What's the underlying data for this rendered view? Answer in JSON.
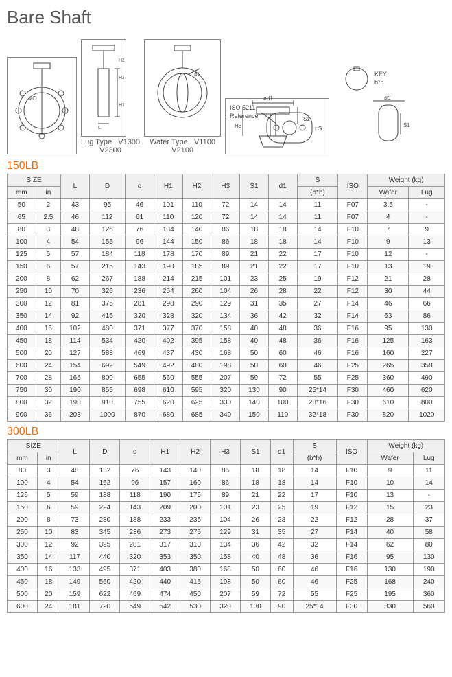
{
  "page_title": "Bare Shaft",
  "diagrams": {
    "lug": {
      "caption1": "Lug Type",
      "caption2": "V1300\nV2300",
      "labels": [
        "øD",
        "H1",
        "H2",
        "H3",
        "L"
      ]
    },
    "wafer": {
      "caption1": "Wafer Type",
      "caption2": "V1100\nV2100",
      "labels": [
        "ød"
      ]
    },
    "top": {
      "label": "ISO 5211\nReference",
      "labels2": [
        "□S"
      ]
    },
    "stem": {
      "labels": [
        "ød1",
        "H3",
        "S1"
      ]
    },
    "key": {
      "labels": [
        "ød",
        "KEY\nb*h",
        "S1"
      ]
    }
  },
  "section1": {
    "title": "150LB",
    "headers": {
      "size": "SIZE",
      "mm": "mm",
      "in": "in",
      "L": "L",
      "D": "D",
      "d": "d",
      "H1": "H1",
      "H2": "H2",
      "H3": "H3",
      "S1": "S1",
      "d1": "d1",
      "S": "S",
      "bh": "(b*h)",
      "ISO": "ISO",
      "Weight": "Weight (kg)",
      "Wafer": "Wafer",
      "Lug": "Lug"
    },
    "rows": [
      [
        "50",
        "2",
        "43",
        "95",
        "46",
        "101",
        "110",
        "72",
        "14",
        "14",
        "11",
        "F07",
        "3.5",
        "-"
      ],
      [
        "65",
        "2.5",
        "46",
        "112",
        "61",
        "110",
        "120",
        "72",
        "14",
        "14",
        "11",
        "F07",
        "4",
        "-"
      ],
      [
        "80",
        "3",
        "48",
        "126",
        "76",
        "134",
        "140",
        "86",
        "18",
        "18",
        "14",
        "F10",
        "7",
        "9"
      ],
      [
        "100",
        "4",
        "54",
        "155",
        "96",
        "144",
        "150",
        "86",
        "18",
        "18",
        "14",
        "F10",
        "9",
        "13"
      ],
      [
        "125",
        "5",
        "57",
        "184",
        "118",
        "178",
        "170",
        "89",
        "21",
        "22",
        "17",
        "F10",
        "12",
        "-"
      ],
      [
        "150",
        "6",
        "57",
        "215",
        "143",
        "190",
        "185",
        "89",
        "21",
        "22",
        "17",
        "F10",
        "13",
        "19"
      ],
      [
        "200",
        "8",
        "62",
        "267",
        "188",
        "214",
        "215",
        "101",
        "23",
        "25",
        "19",
        "F12",
        "21",
        "28"
      ],
      [
        "250",
        "10",
        "70",
        "326",
        "236",
        "254",
        "260",
        "104",
        "26",
        "28",
        "22",
        "F12",
        "30",
        "44"
      ],
      [
        "300",
        "12",
        "81",
        "375",
        "281",
        "298",
        "290",
        "129",
        "31",
        "35",
        "27",
        "F14",
        "46",
        "66"
      ],
      [
        "350",
        "14",
        "92",
        "416",
        "320",
        "328",
        "320",
        "134",
        "36",
        "42",
        "32",
        "F14",
        "63",
        "86"
      ],
      [
        "400",
        "16",
        "102",
        "480",
        "371",
        "377",
        "370",
        "158",
        "40",
        "48",
        "36",
        "F16",
        "95",
        "130"
      ],
      [
        "450",
        "18",
        "114",
        "534",
        "420",
        "402",
        "395",
        "158",
        "40",
        "48",
        "36",
        "F16",
        "125",
        "163"
      ],
      [
        "500",
        "20",
        "127",
        "588",
        "469",
        "437",
        "430",
        "168",
        "50",
        "60",
        "46",
        "F16",
        "160",
        "227"
      ],
      [
        "600",
        "24",
        "154",
        "692",
        "549",
        "492",
        "480",
        "198",
        "50",
        "60",
        "46",
        "F25",
        "265",
        "358"
      ],
      [
        "700",
        "28",
        "165",
        "800",
        "655",
        "560",
        "555",
        "207",
        "59",
        "72",
        "55",
        "F25",
        "360",
        "490"
      ],
      [
        "750",
        "30",
        "190",
        "855",
        "698",
        "610",
        "595",
        "320",
        "130",
        "90",
        "25*14",
        "F30",
        "460",
        "620"
      ],
      [
        "800",
        "32",
        "190",
        "910",
        "755",
        "620",
        "625",
        "330",
        "140",
        "100",
        "28*16",
        "F30",
        "610",
        "800"
      ],
      [
        "900",
        "36",
        "203",
        "1000",
        "870",
        "680",
        "685",
        "340",
        "150",
        "110",
        "32*18",
        "F30",
        "820",
        "1020"
      ]
    ]
  },
  "section2": {
    "title": "300LB",
    "rows": [
      [
        "80",
        "3",
        "48",
        "132",
        "76",
        "143",
        "140",
        "86",
        "18",
        "18",
        "14",
        "F10",
        "9",
        "11"
      ],
      [
        "100",
        "4",
        "54",
        "162",
        "96",
        "157",
        "160",
        "86",
        "18",
        "18",
        "14",
        "F10",
        "10",
        "14"
      ],
      [
        "125",
        "5",
        "59",
        "188",
        "118",
        "190",
        "175",
        "89",
        "21",
        "22",
        "17",
        "F10",
        "13",
        "-"
      ],
      [
        "150",
        "6",
        "59",
        "224",
        "143",
        "209",
        "200",
        "101",
        "23",
        "25",
        "19",
        "F12",
        "15",
        "23"
      ],
      [
        "200",
        "8",
        "73",
        "280",
        "188",
        "233",
        "235",
        "104",
        "26",
        "28",
        "22",
        "F12",
        "28",
        "37"
      ],
      [
        "250",
        "10",
        "83",
        "345",
        "236",
        "273",
        "275",
        "129",
        "31",
        "35",
        "27",
        "F14",
        "40",
        "58"
      ],
      [
        "300",
        "12",
        "92",
        "395",
        "281",
        "317",
        "310",
        "134",
        "36",
        "42",
        "32",
        "F14",
        "62",
        "80"
      ],
      [
        "350",
        "14",
        "117",
        "440",
        "320",
        "353",
        "350",
        "158",
        "40",
        "48",
        "36",
        "F16",
        "95",
        "130"
      ],
      [
        "400",
        "16",
        "133",
        "495",
        "371",
        "403",
        "380",
        "168",
        "50",
        "60",
        "46",
        "F16",
        "130",
        "190"
      ],
      [
        "450",
        "18",
        "149",
        "560",
        "420",
        "440",
        "415",
        "198",
        "50",
        "60",
        "46",
        "F25",
        "168",
        "240"
      ],
      [
        "500",
        "20",
        "159",
        "622",
        "469",
        "474",
        "450",
        "207",
        "59",
        "72",
        "55",
        "F25",
        "195",
        "360"
      ],
      [
        "600",
        "24",
        "181",
        "720",
        "549",
        "542",
        "530",
        "320",
        "130",
        "90",
        "25*14",
        "F30",
        "330",
        "560"
      ]
    ]
  },
  "colors": {
    "accent": "#ff6600",
    "border": "#999999",
    "text": "#333333",
    "headerbg": "#f0f0f0"
  }
}
